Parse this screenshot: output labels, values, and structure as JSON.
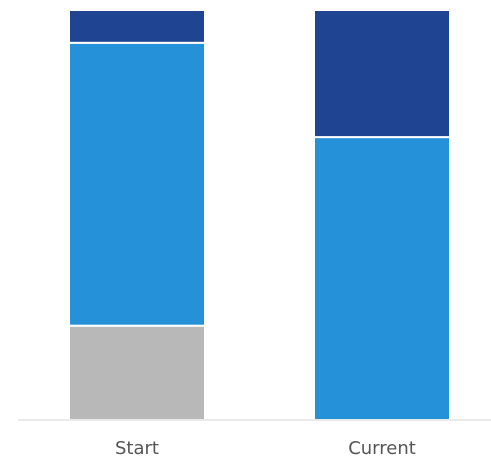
{
  "chart_data": {
    "type": "bar",
    "stacked": true,
    "categories": [
      "Start",
      "Current"
    ],
    "series": [
      {
        "color": "#b8b8b8",
        "values": [
          23,
          0
        ]
      },
      {
        "color": "#2591d9",
        "values": [
          69,
          69
        ]
      },
      {
        "color": "#1f4491",
        "values": [
          8,
          31
        ]
      }
    ],
    "ylim": [
      0,
      100
    ],
    "grid": false,
    "legend": "none",
    "title": "",
    "xlabel": "",
    "ylabel": ""
  }
}
